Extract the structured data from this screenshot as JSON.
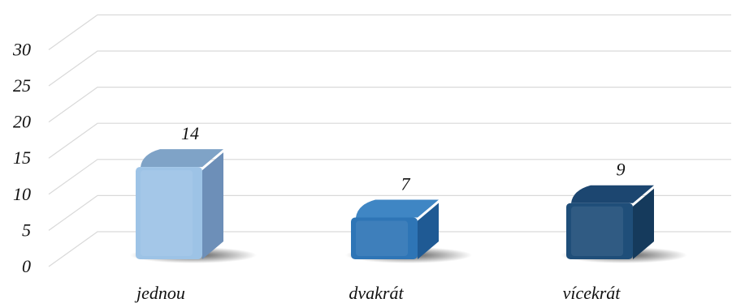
{
  "chart_data": {
    "type": "bar",
    "categories": [
      "jednou",
      "dvakrát",
      "vícekrát"
    ],
    "values": [
      14,
      7,
      9
    ],
    "data_labels": [
      "14",
      "7",
      "9"
    ],
    "ylim": [
      0,
      30
    ],
    "yticks": [
      "0",
      "5",
      "10",
      "15",
      "20",
      "25",
      "30"
    ],
    "grid": true,
    "three_d": true,
    "legend": "none",
    "colors": {
      "bar_fronts": [
        "#9dc3e6",
        "#2e75b6",
        "#1f4e79"
      ],
      "bar_sides": [
        "#6d8fb8",
        "#1f5a94",
        "#153a5c"
      ],
      "bar_tops": [
        "#7fa3c7",
        "#3f86c4",
        "#1c4670"
      ],
      "grid": "#d9d9d9",
      "text": "#111111"
    }
  }
}
